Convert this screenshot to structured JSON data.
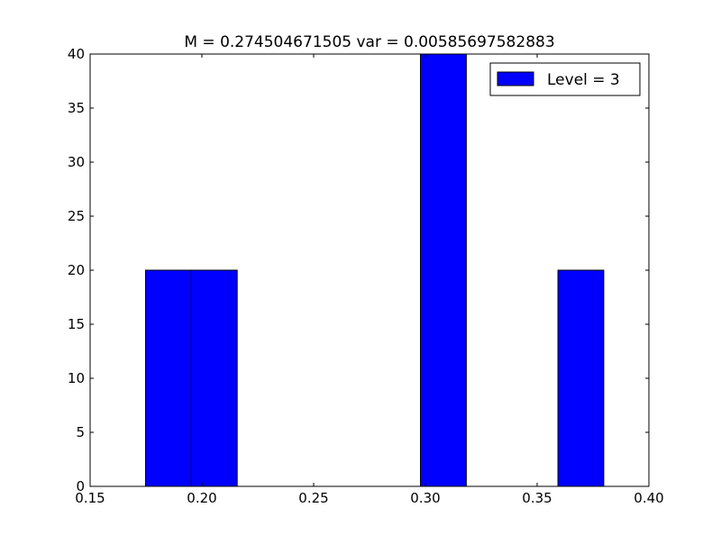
{
  "chart_data": {
    "type": "bar",
    "title": "M = 0.274504671505 var = 0.00585697582883",
    "xlabel": "",
    "ylabel": "",
    "xlim": [
      0.15,
      0.4
    ],
    "ylim": [
      0,
      40
    ],
    "grid": false,
    "legend": {
      "position": "top-right"
    },
    "xticks": [
      "0.15",
      "0.20",
      "0.25",
      "0.30",
      "0.35",
      "0.40"
    ],
    "yticks": [
      "0",
      "5",
      "10",
      "15",
      "20",
      "25",
      "30",
      "35",
      "40"
    ],
    "series": [
      {
        "name": "Level = 3",
        "color": "#0000ff",
        "bins": [
          {
            "x0": 0.1748,
            "x1": 0.1953,
            "value": 20
          },
          {
            "x0": 0.1953,
            "x1": 0.2158,
            "value": 20
          },
          {
            "x0": 0.2158,
            "x1": 0.2363,
            "value": 0
          },
          {
            "x0": 0.2363,
            "x1": 0.2568,
            "value": 0
          },
          {
            "x0": 0.2568,
            "x1": 0.2773,
            "value": 0
          },
          {
            "x0": 0.2773,
            "x1": 0.2978,
            "value": 0
          },
          {
            "x0": 0.2978,
            "x1": 0.3183,
            "value": 40
          },
          {
            "x0": 0.3183,
            "x1": 0.3388,
            "value": 0
          },
          {
            "x0": 0.3388,
            "x1": 0.3593,
            "value": 0
          },
          {
            "x0": 0.3593,
            "x1": 0.3798,
            "value": 20
          }
        ]
      }
    ]
  }
}
